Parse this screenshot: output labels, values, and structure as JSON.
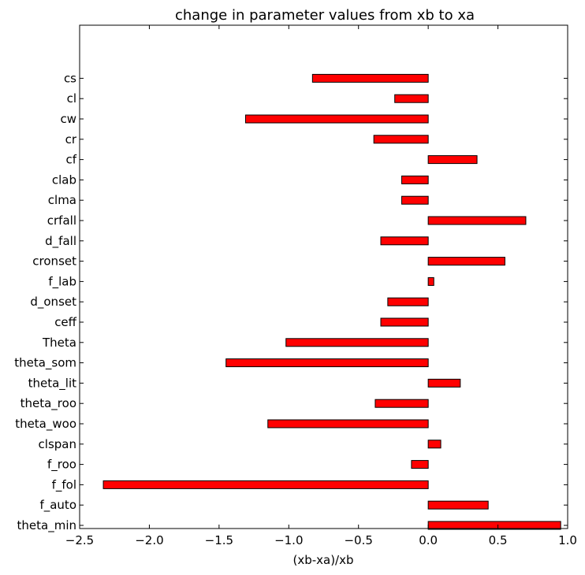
{
  "chart_data": {
    "type": "bar",
    "orientation": "horizontal",
    "title": "change in parameter values from xb to xa",
    "xlabel": "(xb-xa)/xb",
    "ylabel": "",
    "xlim": [
      -2.5,
      1.0
    ],
    "xticks": [
      -2.5,
      -2.0,
      -1.5,
      -1.0,
      -0.5,
      0.0,
      0.5,
      1.0
    ],
    "xtick_labels": [
      "−2.5",
      "−2.0",
      "−1.5",
      "−1.0",
      "−0.5",
      "0.0",
      "0.5",
      "1.0"
    ],
    "bar_color": "#ff0000",
    "grid": false,
    "categories": [
      "theta_min",
      "f_auto",
      "f_fol",
      "f_roo",
      "clspan",
      "theta_woo",
      "theta_roo",
      "theta_lit",
      "theta_som",
      "Theta",
      "ceff",
      "d_onset",
      "f_lab",
      "cronset",
      "d_fall",
      "crfall",
      "clma",
      "clab",
      "cf",
      "cr",
      "cw",
      "cl",
      "cs"
    ],
    "values": [
      0.95,
      0.43,
      -2.33,
      -0.12,
      0.09,
      -1.15,
      -0.38,
      0.23,
      -1.45,
      -1.02,
      -0.34,
      -0.29,
      0.04,
      0.55,
      -0.34,
      0.7,
      -0.19,
      -0.19,
      0.35,
      -0.39,
      -1.31,
      -0.24,
      -0.83
    ]
  }
}
